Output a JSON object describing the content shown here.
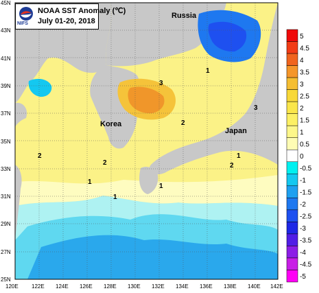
{
  "title": {
    "line1": "NOAA SST Anomaly (℃)",
    "line2": "July 01-20, 2018",
    "org": "NIFS"
  },
  "map": {
    "lon_ticks": [
      "120E",
      "122E",
      "124E",
      "126E",
      "128E",
      "130E",
      "132E",
      "134E",
      "136E",
      "138E",
      "140E",
      "142E"
    ],
    "lat_ticks": [
      "45N",
      "43N",
      "41N",
      "39N",
      "37N",
      "35N",
      "33N",
      "31N",
      "29N",
      "27N",
      "25N"
    ],
    "places": {
      "russia": "Russia",
      "korea": "Korea",
      "japan": "Japan"
    },
    "contour_labels": [
      "2",
      "1",
      "3",
      "2",
      "1",
      "2",
      "2",
      "1",
      "1",
      "1",
      "3"
    ]
  },
  "colorbar": {
    "labels": [
      "5",
      "4.5",
      "4",
      "3.5",
      "3",
      "2.5",
      "2",
      "1.5",
      "1",
      "0.5",
      "0",
      "-0.5",
      "-1",
      "-1.5",
      "-2",
      "-2.5",
      "-3",
      "-3.5",
      "-4",
      "-4.5",
      "-5"
    ],
    "colors": [
      "#f00a0a",
      "#f23c16",
      "#f0641e",
      "#f5962a",
      "#f5be32",
      "#f8d838",
      "#fae64a",
      "#fcf064",
      "#fdf78a",
      "#fefcb4",
      "#ffffff",
      "#00f0f0",
      "#14c8f0",
      "#1ea0f0",
      "#1e78f0",
      "#1e50f0",
      "#1e28e6",
      "#501ee6",
      "#8c1ee6",
      "#c81ee6",
      "#ff00f5"
    ]
  }
}
